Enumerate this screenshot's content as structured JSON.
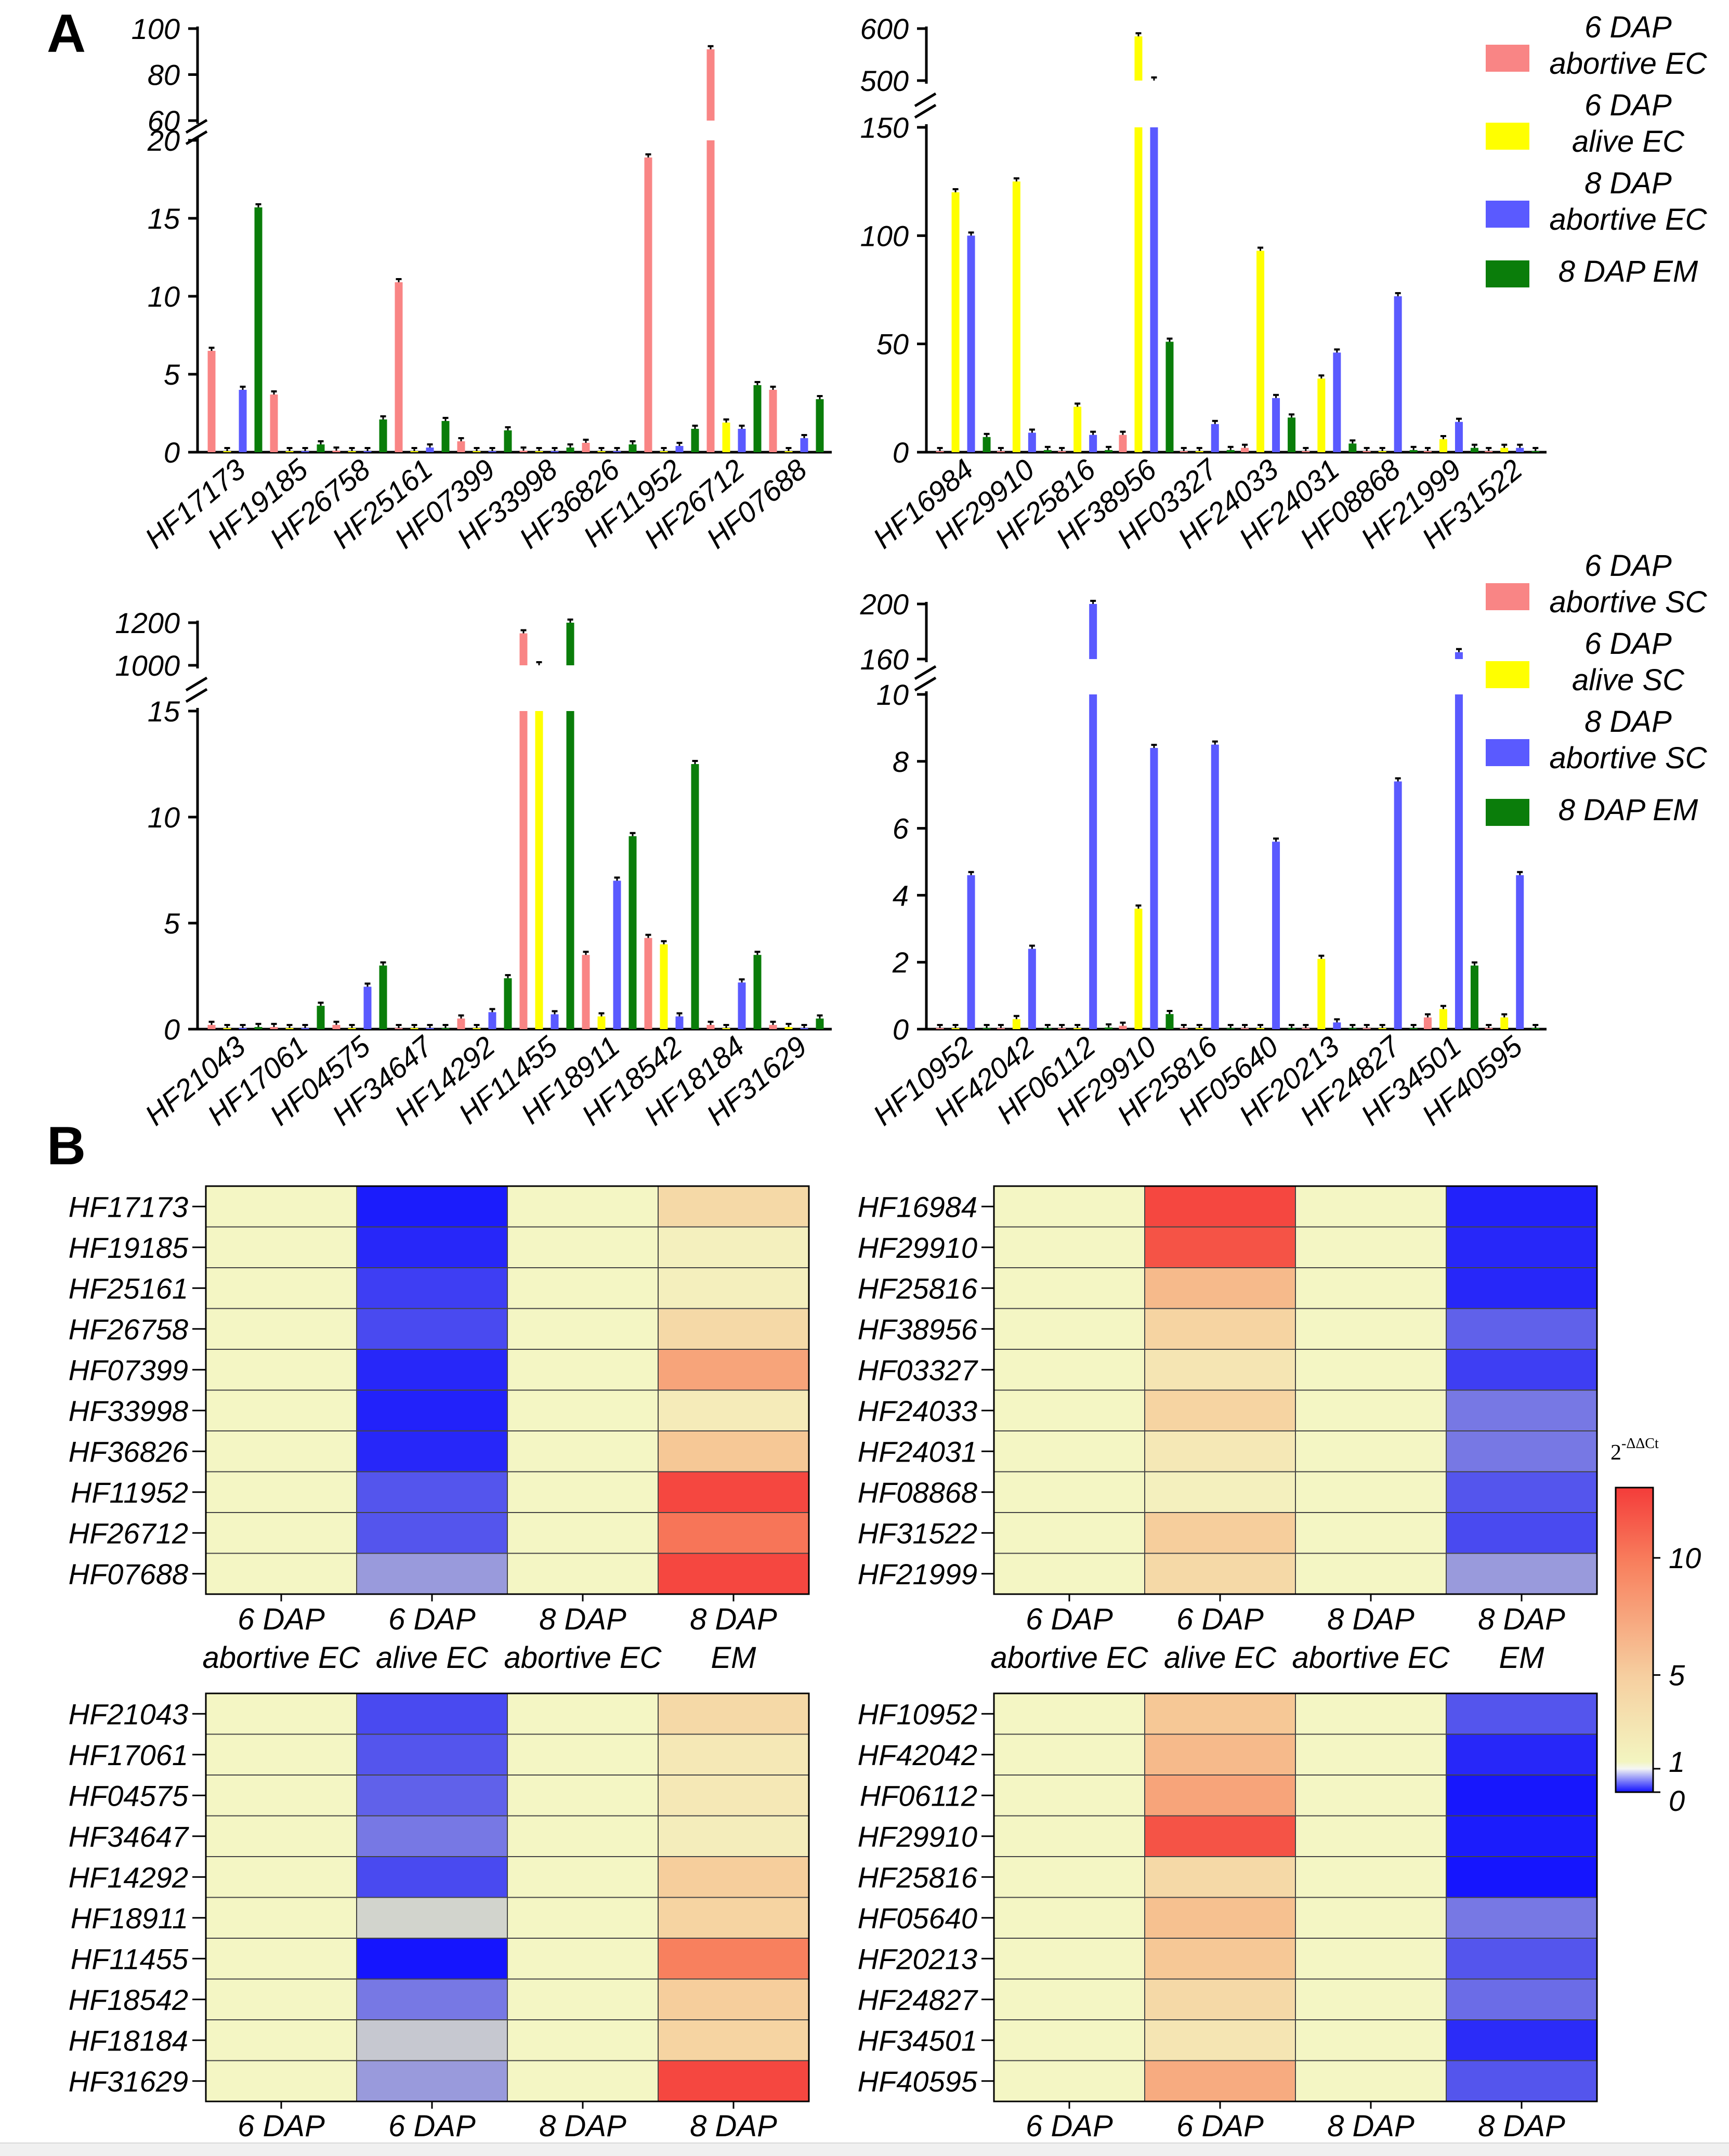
{
  "panel_labels": [
    "A",
    "B"
  ],
  "series_colors": {
    "6 DAP abortive": "#f98585",
    "6 DAP alive": "#ffff00",
    "8 DAP abortive": "#5a5aff",
    "8 DAP EM": "#0a7d0a"
  },
  "legend_top": {
    "entries": [
      {
        "line1": "6 DAP",
        "line2": "abortive EC",
        "color": "#f98585"
      },
      {
        "line1": "6 DAP",
        "line2": "alive EC",
        "color": "#ffff00"
      },
      {
        "line1": "8 DAP",
        "line2": "abortive EC",
        "color": "#5a5aff"
      },
      {
        "line1": "8 DAP EM",
        "line2": "",
        "color": "#0a7d0a"
      }
    ]
  },
  "legend_bottom": {
    "entries": [
      {
        "line1": "6 DAP",
        "line2": "abortive SC",
        "color": "#f98585"
      },
      {
        "line1": "6 DAP",
        "line2": "alive SC",
        "color": "#ffff00"
      },
      {
        "line1": "8 DAP",
        "line2": "abortive SC",
        "color": "#5a5aff"
      },
      {
        "line1": "8 DAP EM",
        "line2": "",
        "color": "#0a7d0a"
      }
    ]
  },
  "colorbar": {
    "title": "2",
    "title_sup": "-ΔΔCt",
    "ticks": [
      {
        "label": "10",
        "value": 10
      },
      {
        "label": "5",
        "value": 5
      },
      {
        "label": "1",
        "value": 1
      },
      {
        "label": "0",
        "value": 0
      }
    ],
    "range": [
      0,
      13
    ]
  },
  "chart_data": [
    {
      "type": "bar",
      "panel": "A-top-left",
      "categories": [
        "HF17173",
        "HF19185",
        "HF26758",
        "HF25161",
        "HF07399",
        "HF33998",
        "HF36826",
        "HF11952",
        "HF26712",
        "HF07688"
      ],
      "series": [
        {
          "name": "6 DAP abortive EC",
          "values": [
            6.5,
            3.7,
            0.1,
            10.9,
            0.7,
            0.1,
            0.6,
            18.9,
            91,
            4.0
          ]
        },
        {
          "name": "6 DAP alive EC",
          "values": [
            0.05,
            0.05,
            0.05,
            0.05,
            0.05,
            0.05,
            0.05,
            0.05,
            1.9,
            0.05
          ]
        },
        {
          "name": "8 DAP abortive EC",
          "values": [
            4.0,
            0.05,
            0.05,
            0.3,
            0.05,
            0.05,
            0.05,
            0.4,
            1.5,
            0.9
          ]
        },
        {
          "name": "8 DAP EM",
          "values": [
            15.7,
            0.5,
            2.1,
            2.0,
            1.4,
            0.3,
            0.5,
            1.5,
            4.3,
            3.4
          ]
        }
      ],
      "lower_ticks": [
        "0",
        "5",
        "10",
        "15",
        "20"
      ],
      "upper_ticks": [
        "60",
        "80",
        "100"
      ],
      "lower_range": [
        0,
        20
      ],
      "upper_range": [
        60,
        100
      ]
    },
    {
      "type": "bar",
      "panel": "A-top-right",
      "categories": [
        "HF16984",
        "HF29910",
        "HF25816",
        "HF38956",
        "HF03327",
        "HF24033",
        "HF24031",
        "HF08868",
        "HF21999",
        "HF31522"
      ],
      "series": [
        {
          "name": "6 DAP abortive EC",
          "values": [
            0.5,
            0.5,
            0.5,
            8,
            0.5,
            2,
            0.5,
            0.5,
            0.5,
            0.5
          ]
        },
        {
          "name": "6 DAP alive EC",
          "values": [
            120,
            125,
            21,
            585,
            0.5,
            93,
            34,
            0.5,
            6,
            2
          ]
        },
        {
          "name": "8 DAP abortive EC",
          "values": [
            100,
            9,
            8,
            500,
            13,
            25,
            46,
            72,
            14,
            2
          ]
        },
        {
          "name": "8 DAP EM",
          "values": [
            7,
            1,
            1,
            51,
            1,
            16,
            4,
            1,
            2,
            0.5
          ]
        }
      ],
      "lower_ticks": [
        "0",
        "50",
        "100",
        "150"
      ],
      "upper_ticks": [
        "500",
        "600"
      ],
      "lower_range": [
        0,
        150
      ],
      "upper_range": [
        500,
        600
      ]
    },
    {
      "type": "bar",
      "panel": "A-bottom-left",
      "categories": [
        "HF21043",
        "HF17061",
        "HF04575",
        "HF34647",
        "HF14292",
        "HF11455",
        "HF18911",
        "HF18542",
        "HF18184",
        "HF31629"
      ],
      "series": [
        {
          "name": "6 DAP abortive SC",
          "values": [
            0.2,
            0.1,
            0.2,
            0.02,
            0.5,
            1150,
            3.5,
            4.3,
            0.2,
            0.2
          ]
        },
        {
          "name": "6 DAP alive SC",
          "values": [
            0.02,
            0.02,
            0.02,
            0.02,
            0.02,
            1000,
            0.6,
            4.0,
            0.02,
            0.1
          ]
        },
        {
          "name": "8 DAP abortive SC",
          "values": [
            0.02,
            0.02,
            2.0,
            0.02,
            0.8,
            0.7,
            7.0,
            0.6,
            2.2,
            0.02
          ]
        },
        {
          "name": "8 DAP EM",
          "values": [
            0.1,
            1.1,
            3.0,
            0.02,
            2.4,
            1200,
            9.1,
            12.5,
            3.5,
            0.5
          ]
        }
      ],
      "lower_ticks": [
        "0",
        "5",
        "10",
        "15"
      ],
      "upper_ticks": [
        "1000",
        "1200"
      ],
      "lower_range": [
        0,
        15
      ],
      "upper_range": [
        1000,
        1200
      ]
    },
    {
      "type": "bar",
      "panel": "A-bottom-right",
      "categories": [
        "HF10952",
        "HF42042",
        "HF06112",
        "HF29910",
        "HF25816",
        "HF05640",
        "HF20213",
        "HF24827",
        "HF34501",
        "HF40595"
      ],
      "series": [
        {
          "name": "6 DAP abortive SC",
          "values": [
            0.01,
            0.01,
            0.01,
            0.1,
            0.01,
            0.01,
            0.01,
            0.01,
            0.35,
            0.01
          ]
        },
        {
          "name": "6 DAP alive SC",
          "values": [
            0.01,
            0.3,
            0.01,
            3.6,
            0.01,
            0.01,
            2.1,
            0.01,
            0.6,
            0.35
          ]
        },
        {
          "name": "8 DAP abortive SC",
          "values": [
            4.6,
            2.4,
            200,
            8.4,
            8.5,
            5.6,
            0.2,
            7.4,
            165,
            4.6
          ]
        },
        {
          "name": "8 DAP EM",
          "values": [
            0.01,
            0.01,
            0.05,
            0.45,
            0.01,
            0.01,
            0.01,
            0.01,
            1.9,
            0.01
          ]
        }
      ],
      "lower_ticks": [
        "0",
        "2",
        "4",
        "6",
        "8",
        "10"
      ],
      "upper_ticks": [
        "160",
        "200"
      ],
      "lower_range": [
        0,
        10
      ],
      "upper_range": [
        160,
        200
      ]
    },
    {
      "type": "heatmap",
      "panel": "B-top-left",
      "rows": [
        "HF17173",
        "HF19185",
        "HF25161",
        "HF26758",
        "HF07399",
        "HF33998",
        "HF36826",
        "HF11952",
        "HF26712",
        "HF07688"
      ],
      "columns": [
        {
          "line1": "6 DAP",
          "line2": "abortive EC"
        },
        {
          "line1": "6 DAP",
          "line2": "alive EC"
        },
        {
          "line1": "8 DAP",
          "line2": "abortive EC"
        },
        {
          "line1": "8 DAP",
          "line2": "EM"
        }
      ],
      "values": [
        [
          1,
          0.05,
          1,
          3.5
        ],
        [
          1,
          0.1,
          1,
          1.5
        ],
        [
          1,
          0.2,
          1,
          1.6
        ],
        [
          1,
          0.25,
          1,
          3.5
        ],
        [
          1,
          0.1,
          1,
          7.5
        ],
        [
          1,
          0.08,
          1,
          2
        ],
        [
          1,
          0.1,
          1,
          5
        ],
        [
          1,
          0.3,
          1,
          12.5
        ],
        [
          1,
          0.3,
          1,
          10.5
        ],
        [
          1,
          0.6,
          1,
          12.5
        ]
      ]
    },
    {
      "type": "heatmap",
      "panel": "B-top-right",
      "rows": [
        "HF16984",
        "HF29910",
        "HF25816",
        "HF38956",
        "HF03327",
        "HF24033",
        "HF24031",
        "HF08868",
        "HF31522",
        "HF21999"
      ],
      "columns": [
        {
          "line1": "6 DAP",
          "line2": "abortive EC"
        },
        {
          "line1": "6 DAP",
          "line2": "alive EC"
        },
        {
          "line1": "8 DAP",
          "line2": "abortive EC"
        },
        {
          "line1": "8 DAP",
          "line2": "EM"
        }
      ],
      "values": [
        [
          1,
          12.5,
          1,
          0.08
        ],
        [
          1,
          12,
          1,
          0.1
        ],
        [
          1,
          6,
          1,
          0.1
        ],
        [
          1,
          4,
          1,
          0.35
        ],
        [
          1,
          2.5,
          1,
          0.2
        ],
        [
          1,
          4,
          1,
          0.45
        ],
        [
          1,
          2.2,
          1,
          0.45
        ],
        [
          1,
          1.5,
          1,
          0.3
        ],
        [
          1,
          4.5,
          1,
          0.25
        ],
        [
          1,
          3.5,
          1,
          0.6
        ]
      ]
    },
    {
      "type": "heatmap",
      "panel": "B-bottom-left",
      "rows": [
        "HF21043",
        "HF17061",
        "HF04575",
        "HF34647",
        "HF14292",
        "HF18911",
        "HF11455",
        "HF18542",
        "HF18184",
        "HF31629"
      ],
      "columns": [
        {
          "line1": "6 DAP",
          "line2": ""
        },
        {
          "line1": "6 DAP",
          "line2": ""
        },
        {
          "line1": "8 DAP",
          "line2": ""
        },
        {
          "line1": "8 DAP",
          "line2": ""
        }
      ],
      "values": [
        [
          1,
          0.25,
          1,
          3.5
        ],
        [
          1,
          0.3,
          1,
          2.2
        ],
        [
          1,
          0.35,
          1,
          2.2
        ],
        [
          1,
          0.45,
          1,
          1.8
        ],
        [
          1,
          0.25,
          1,
          4.5
        ],
        [
          1,
          0.85,
          1,
          4
        ],
        [
          1,
          0.02,
          1,
          10
        ],
        [
          1,
          0.45,
          1,
          4.5
        ],
        [
          1,
          0.8,
          1,
          4
        ],
        [
          1,
          0.6,
          1,
          12.5
        ]
      ]
    },
    {
      "type": "heatmap",
      "panel": "B-bottom-right",
      "rows": [
        "HF10952",
        "HF42042",
        "HF06112",
        "HF29910",
        "HF25816",
        "HF05640",
        "HF20213",
        "HF24827",
        "HF34501",
        "HF40595"
      ],
      "columns": [
        {
          "line1": "6 DAP",
          "line2": ""
        },
        {
          "line1": "6 DAP",
          "line2": ""
        },
        {
          "line1": "8 DAP",
          "line2": ""
        },
        {
          "line1": "8 DAP",
          "line2": ""
        }
      ],
      "values": [
        [
          1,
          5,
          1,
          0.3
        ],
        [
          1,
          6,
          1,
          0.1
        ],
        [
          1,
          7.5,
          1,
          0.03
        ],
        [
          1,
          12,
          1,
          0.05
        ],
        [
          1,
          3.5,
          1,
          0.02
        ],
        [
          1,
          5.5,
          1,
          0.45
        ],
        [
          1,
          5,
          1,
          0.3
        ],
        [
          1,
          3.5,
          1,
          0.4
        ],
        [
          1,
          2.5,
          1,
          0.12
        ],
        [
          1,
          7,
          1,
          0.3
        ]
      ]
    }
  ]
}
